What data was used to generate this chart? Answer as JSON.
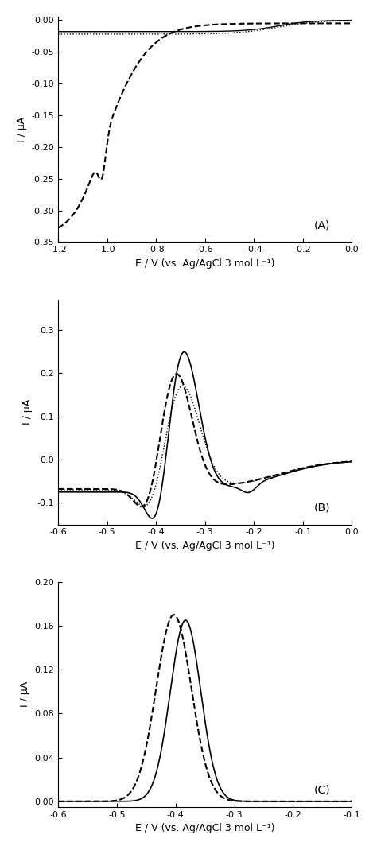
{
  "panel_A": {
    "xlim": [
      -1.2,
      0.0
    ],
    "ylim": [
      -0.35,
      0.005
    ],
    "yticks": [
      0.0,
      -0.05,
      -0.1,
      -0.15,
      -0.2,
      -0.25,
      -0.3,
      -0.35
    ],
    "xticks": [
      -1.2,
      -1.0,
      -0.8,
      -0.6,
      -0.4,
      -0.2,
      0.0
    ],
    "xlabel": "E / V (vs. Ag/AgCl 3 mol L⁻¹)",
    "ylabel": "I / μA",
    "label": "(A)"
  },
  "panel_B": {
    "xlim": [
      -0.6,
      0.0
    ],
    "ylim": [
      -0.15,
      0.37
    ],
    "yticks": [
      -0.1,
      0.0,
      0.1,
      0.2,
      0.3
    ],
    "xticks": [
      -0.6,
      -0.5,
      -0.4,
      -0.3,
      -0.2,
      -0.1,
      0.0
    ],
    "xlabel": "E / V (vs. Ag/AgCl 3 mol L⁻¹)",
    "ylabel": "I / μA",
    "label": "(B)"
  },
  "panel_C": {
    "xlim": [
      -0.6,
      -0.1
    ],
    "ylim": [
      -0.005,
      0.2
    ],
    "yticks": [
      0.0,
      0.04,
      0.08,
      0.12,
      0.16,
      0.2
    ],
    "xticks": [
      -0.6,
      -0.5,
      -0.4,
      -0.3,
      -0.2,
      -0.1
    ],
    "xlabel": "E / V (vs. Ag/AgCl 3 mol L⁻¹)",
    "ylabel": "I / μA",
    "label": "(C)"
  },
  "line_color": "#000000",
  "background": "#ffffff"
}
